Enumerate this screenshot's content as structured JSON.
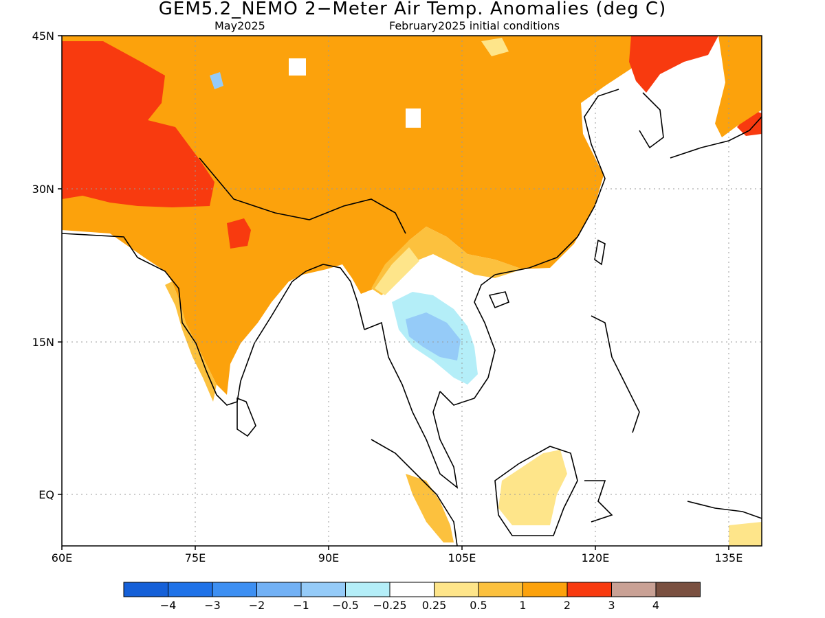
{
  "title": "GEM5.2_NEMO 2−Meter Air Temp. Anomalies (deg C)",
  "subtitle_left": "May2025",
  "subtitle_right": "February2025 initial conditions",
  "lat_ticks": [
    "45N",
    "30N",
    "15N",
    "EQ"
  ],
  "lon_ticks": [
    "60E",
    "75E",
    "90E",
    "105E",
    "120E",
    "135E"
  ],
  "colorbar": {
    "colors": [
      "#1560d8",
      "#1f72e8",
      "#3d8ff2",
      "#72b1f5",
      "#95cbf8",
      "#b4eef8",
      "#ffffff",
      "#fee58a",
      "#fcc13e",
      "#fca20c",
      "#f83a0f",
      "#c9a195",
      "#7a5040"
    ],
    "labels": [
      "−4",
      "−3",
      "−2",
      "−1",
      "−0.5",
      "−0.25",
      "0.25",
      "0.5",
      "1",
      "2",
      "3",
      "4"
    ]
  }
}
